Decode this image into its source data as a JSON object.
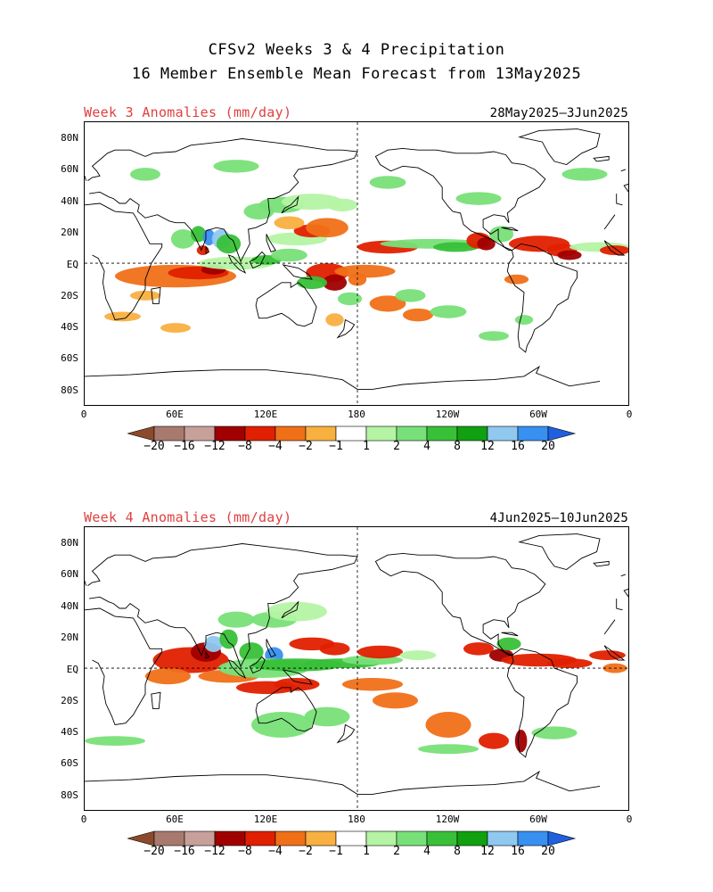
{
  "title_line1": "CFSv2 Weeks 3 & 4 Precipitation",
  "title_line2": "16 Member Ensemble Mean Forecast from 13May2025",
  "panels": [
    {
      "label": "Week 3 Anomalies (mm/day)",
      "dates": "28May2025—3Jun2025"
    },
    {
      "label": "Week 4 Anomalies (mm/day)",
      "dates": "4Jun2025—10Jun2025"
    }
  ],
  "lat_labels": [
    "80N",
    "60N",
    "40N",
    "20N",
    "EQ",
    "20S",
    "40S",
    "60S",
    "80S"
  ],
  "lon_labels": [
    "0",
    "60E",
    "120E",
    "180",
    "120W",
    "60W",
    "0"
  ],
  "colorbar": {
    "labels": [
      "−20",
      "−16",
      "−12",
      "−8",
      "−4",
      "−2",
      "−1",
      "1",
      "2",
      "4",
      "8",
      "12",
      "16",
      "20"
    ],
    "colors": [
      "#8b4a2b",
      "#a87a6e",
      "#c8a09a",
      "#a00000",
      "#e02000",
      "#f07018",
      "#f8b040",
      "#ffffff",
      "#b4f4a4",
      "#78e078",
      "#38c038",
      "#10a010",
      "#90c8f0",
      "#3890f0",
      "#2060e0"
    ]
  },
  "chart_data": {
    "type": "heatmap",
    "description_units": "mm/day",
    "levels": [
      -20,
      -16,
      -12,
      -8,
      -4,
      -2,
      -1,
      1,
      2,
      4,
      8,
      12,
      16,
      20
    ]
  }
}
